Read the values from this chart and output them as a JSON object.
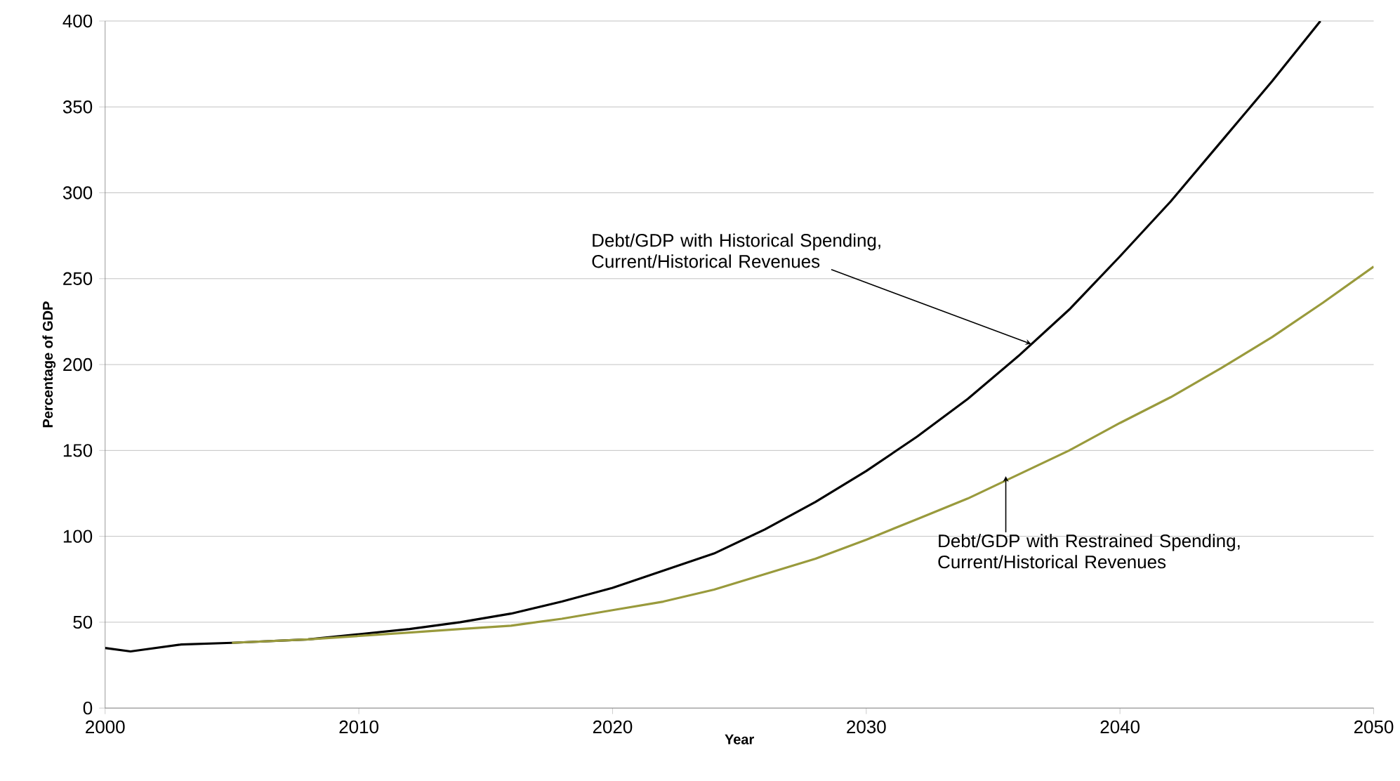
{
  "chart_data": {
    "type": "line",
    "xlabel": "Year",
    "ylabel": "Percentage of GDP",
    "xlim": [
      2000,
      2050
    ],
    "ylim": [
      0,
      400
    ],
    "xticks": [
      2000,
      2010,
      2020,
      2030,
      2040,
      2050
    ],
    "yticks": [
      0,
      50,
      100,
      150,
      200,
      250,
      300,
      350,
      400
    ],
    "grid": "y",
    "marker": "none",
    "line_style": "solid",
    "series": [
      {
        "color": "#000000",
        "x": [
          2000,
          2001,
          2003,
          2005,
          2008,
          2010,
          2012,
          2014,
          2016,
          2018,
          2020,
          2022,
          2024,
          2026,
          2028,
          2030,
          2032,
          2034,
          2036,
          2038,
          2040,
          2042,
          2044,
          2046,
          2047.9
        ],
        "values": [
          35,
          33,
          37,
          38,
          40,
          43,
          46,
          50,
          55,
          62,
          70,
          80,
          90,
          104,
          120,
          138,
          158,
          180,
          205,
          232,
          263,
          295,
          330,
          365,
          400
        ]
      },
      {
        "color": "#999a3c",
        "x": [
          2005,
          2008,
          2010,
          2012,
          2014,
          2016,
          2018,
          2020,
          2022,
          2024,
          2026,
          2028,
          2030,
          2032,
          2034,
          2036,
          2038,
          2040,
          2042,
          2044,
          2046,
          2048,
          2050
        ],
        "values": [
          38,
          40,
          42,
          44,
          46,
          48,
          52,
          57,
          62,
          69,
          78,
          87,
          98,
          110,
          122,
          136,
          150,
          166,
          181,
          198,
          216,
          236,
          257
        ]
      }
    ],
    "annotations": [
      {
        "text": "Debt/GDP with Historical Spending, Current/Historical Revenues",
        "x": 2036.5,
        "y": 212
      },
      {
        "text": "Debt/GDP with Restrained Spending, Current/Historical Revenues",
        "x": 2035.5,
        "y": 135
      }
    ]
  }
}
